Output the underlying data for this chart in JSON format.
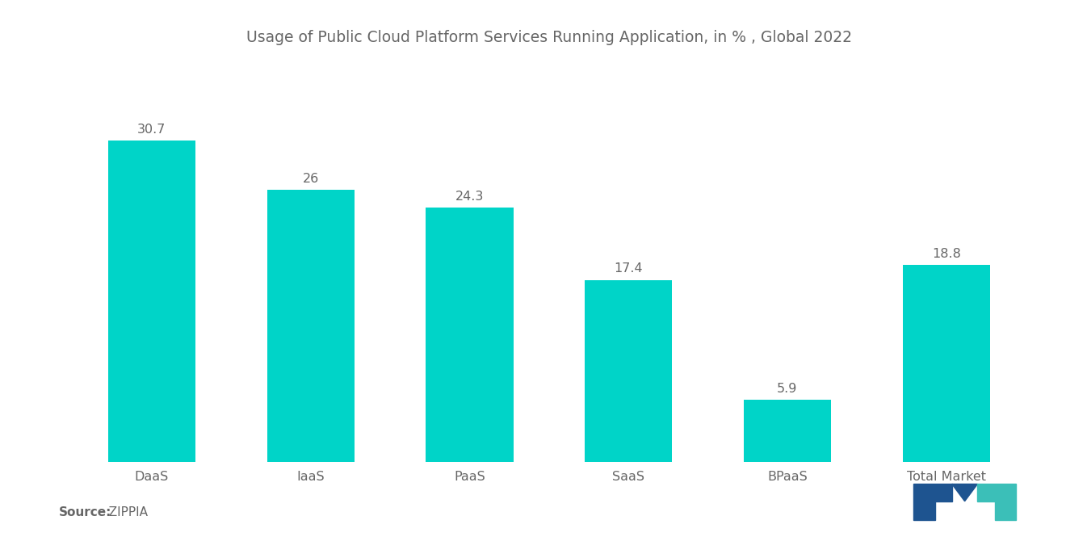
{
  "title": "Usage of Public Cloud Platform Services Running Application, in % , Global 2022",
  "categories": [
    "DaaS",
    "IaaS",
    "PaaS",
    "SaaS",
    "BPaaS",
    "Total Market"
  ],
  "values": [
    30.7,
    26,
    24.3,
    17.4,
    5.9,
    18.8
  ],
  "bar_color": "#00D4C8",
  "value_labels": [
    "30.7",
    "26",
    "24.3",
    "17.4",
    "5.9",
    "18.8"
  ],
  "source_bold": "Source:",
  "source_normal": "  ZIPPIA",
  "title_fontsize": 13.5,
  "label_fontsize": 11.5,
  "value_fontsize": 11.5,
  "source_fontsize": 11,
  "background_color": "#ffffff",
  "text_color": "#666666",
  "ylim": [
    0,
    38
  ],
  "bar_width": 0.55,
  "logo_left_color": "#1e5490",
  "logo_right_color": "#3bbfb8"
}
